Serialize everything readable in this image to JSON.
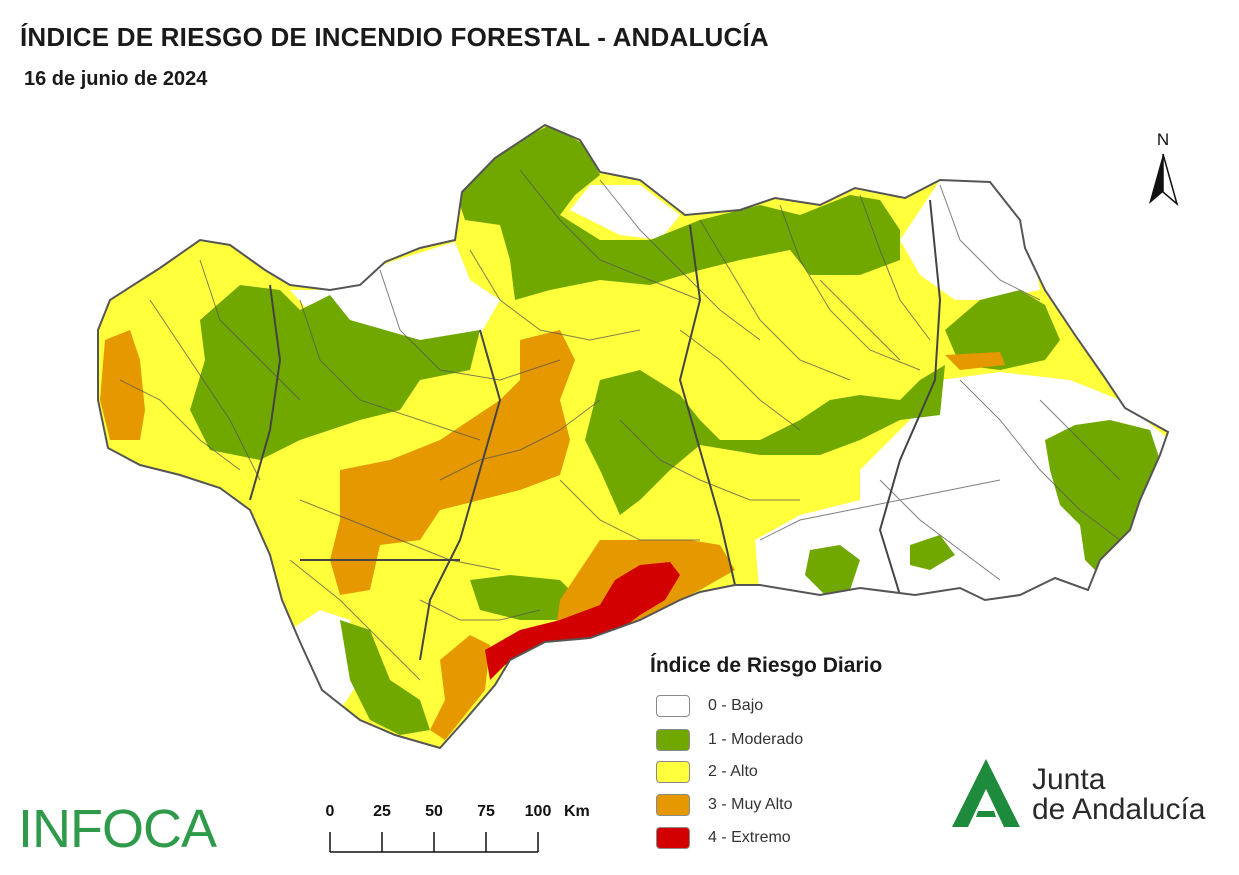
{
  "header": {
    "title": "ÍNDICE DE RIESGO DE INCENDIO FORESTAL - ANDALUCÍA",
    "date": "16 de junio de 2024"
  },
  "north_arrow": {
    "label": "N"
  },
  "legend": {
    "title": "Índice de Riesgo Diario",
    "items": [
      {
        "label": "0 - Bajo",
        "color": "#ffffff"
      },
      {
        "label": "1 - Moderado",
        "color": "#70a800"
      },
      {
        "label": "2 - Alto",
        "color": "#ffff3c"
      },
      {
        "label": "3 - Muy Alto",
        "color": "#e69800"
      },
      {
        "label": "4 - Extremo",
        "color": "#d20000"
      }
    ]
  },
  "scale_bar": {
    "ticks": [
      "0",
      "25",
      "50",
      "75",
      "100"
    ],
    "unit": "Km"
  },
  "logos": {
    "infoca": "INFOCA",
    "junta_line1": "Junta",
    "junta_line2": "de Andalucía",
    "junta_color": "#1e8a3c"
  },
  "map_colors": {
    "outline": "#555555",
    "bajo": "#ffffff",
    "moderado": "#70a800",
    "alto": "#ffff3c",
    "muy_alto": "#e69800",
    "extremo": "#d20000"
  }
}
